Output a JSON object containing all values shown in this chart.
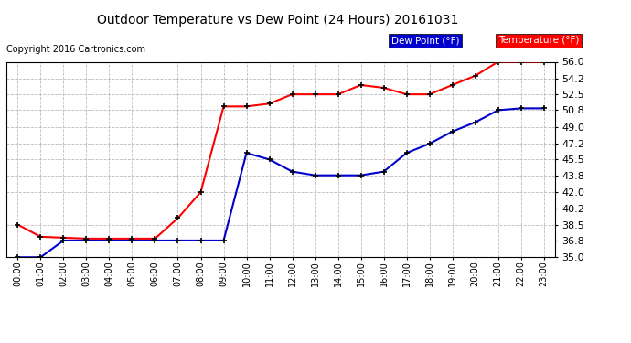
{
  "title": "Outdoor Temperature vs Dew Point (24 Hours) 20161031",
  "copyright": "Copyright 2016 Cartronics.com",
  "x_labels": [
    "00:00",
    "01:00",
    "02:00",
    "03:00",
    "04:00",
    "05:00",
    "06:00",
    "07:00",
    "08:00",
    "09:00",
    "10:00",
    "11:00",
    "12:00",
    "13:00",
    "14:00",
    "15:00",
    "16:00",
    "17:00",
    "18:00",
    "19:00",
    "20:00",
    "21:00",
    "22:00",
    "23:00"
  ],
  "ylim": [
    35.0,
    56.0
  ],
  "yticks": [
    35.0,
    36.8,
    38.5,
    40.2,
    42.0,
    43.8,
    45.5,
    47.2,
    49.0,
    50.8,
    52.5,
    54.2,
    56.0
  ],
  "temperature": [
    38.5,
    37.2,
    37.1,
    37.0,
    37.0,
    37.0,
    37.0,
    39.2,
    42.0,
    51.2,
    51.2,
    51.5,
    52.5,
    52.5,
    52.5,
    53.5,
    53.2,
    52.5,
    52.5,
    53.5,
    54.5,
    56.0,
    56.0,
    56.0
  ],
  "dew_point": [
    35.0,
    35.0,
    36.8,
    36.8,
    36.8,
    36.8,
    36.8,
    36.8,
    36.8,
    36.8,
    46.2,
    45.5,
    44.2,
    43.8,
    43.8,
    43.8,
    44.2,
    46.2,
    47.2,
    48.5,
    49.5,
    50.8,
    51.0,
    51.0
  ],
  "temp_color": "#FF0000",
  "dew_color": "#0000CC",
  "bg_color": "#FFFFFF",
  "grid_color": "#BBBBBB",
  "legend_dew_bg": "#0000CC",
  "legend_temp_bg": "#FF0000",
  "legend_text_color": "#FFFFFF",
  "marker": "+",
  "marker_color": "#000000",
  "marker_size": 5,
  "marker_linewidth": 1.2,
  "line_width": 1.5
}
